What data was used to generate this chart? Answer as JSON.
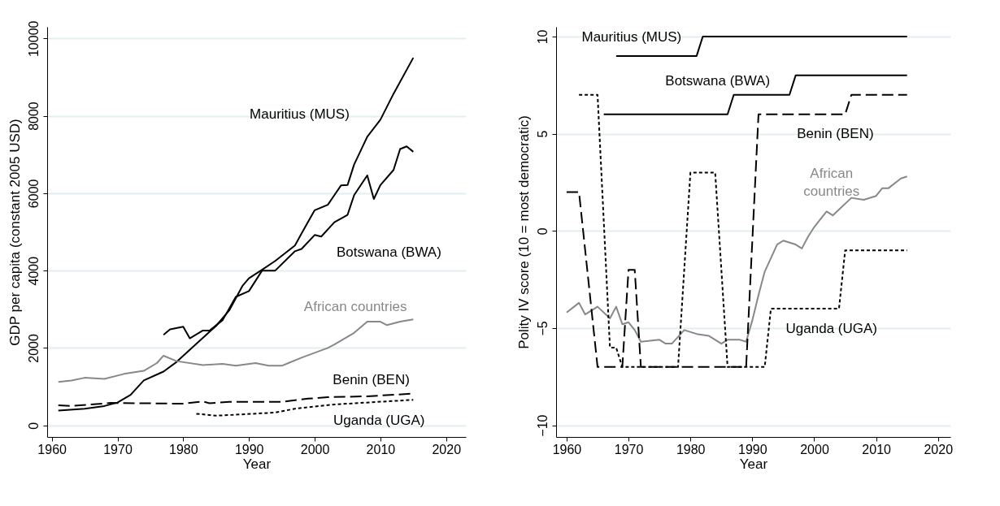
{
  "chart_data": [
    {
      "type": "line",
      "xlabel": "Year",
      "ylabel": "GDP per capita (constant 2005 USD)",
      "xlim": [
        1959.3,
        2023
      ],
      "ylim": [
        -300,
        10300
      ],
      "xticks": [
        1960,
        1970,
        1980,
        1990,
        2000,
        2010,
        2020
      ],
      "yticks": [
        0,
        2000,
        4000,
        6000,
        8000,
        10000
      ],
      "grid": "y",
      "series": [
        {
          "name": "Mauritius (MUS)",
          "color": "#000000",
          "line_style": "solid",
          "x": [
            1961,
            1965,
            1968,
            1970,
            1972,
            1974,
            1977,
            1979,
            1982,
            1985,
            1987,
            1989,
            1990,
            1992,
            1994,
            1997,
            1998,
            2000,
            2002,
            2003,
            2004,
            2005,
            2006,
            2008,
            2010,
            2012,
            2015
          ],
          "values": [
            380,
            430,
            500,
            590,
            790,
            1160,
            1390,
            1640,
            2110,
            2570,
            2970,
            3600,
            3800,
            4020,
            4250,
            4650,
            4960,
            5560,
            5700,
            5950,
            6200,
            6210,
            6740,
            7460,
            7900,
            8570,
            9500
          ]
        },
        {
          "name": "Botswana (BWA)",
          "color": "#000000",
          "line_style": "solid",
          "x": [
            1977,
            1978,
            1980,
            1981,
            1983,
            1984,
            1986,
            1988,
            1990,
            1992,
            1994,
            1997,
            1998,
            2000,
            2001,
            2003,
            2005,
            2006,
            2008,
            2009,
            2010,
            2012,
            2013,
            2014,
            2015
          ],
          "values": [
            2340,
            2480,
            2550,
            2250,
            2450,
            2450,
            2720,
            3320,
            3470,
            4000,
            4000,
            4500,
            4560,
            4920,
            4880,
            5250,
            5440,
            5950,
            6460,
            5850,
            6210,
            6600,
            7140,
            7210,
            7070
          ]
        },
        {
          "name": "African countries",
          "color": "#888888",
          "line_style": "solid",
          "x": [
            1961,
            1963,
            1965,
            1968,
            1971,
            1974,
            1976,
            1977,
            1979,
            1983,
            1986,
            1988,
            1991,
            1993,
            1995,
            1996,
            1998,
            2002,
            2003,
            2006,
            2008,
            2010,
            2011,
            2013,
            2015
          ],
          "values": [
            1120,
            1160,
            1230,
            1200,
            1330,
            1410,
            1610,
            1800,
            1660,
            1560,
            1590,
            1540,
            1610,
            1540,
            1540,
            1610,
            1750,
            2000,
            2090,
            2390,
            2680,
            2680,
            2590,
            2680,
            2740
          ]
        },
        {
          "name": "Benin (BEN)",
          "color": "#000000",
          "line_style": "dashed",
          "x": [
            1961,
            1963,
            1969,
            1980,
            1983,
            1984,
            1987,
            1995,
            1999,
            2002,
            2008,
            2015
          ],
          "values": [
            520,
            500,
            580,
            560,
            620,
            570,
            610,
            610,
            690,
            730,
            750,
            820
          ]
        },
        {
          "name": "Uganda (UGA)",
          "color": "#000000",
          "line_style": "dotted",
          "x": [
            1982,
            1985,
            1994,
            1997,
            2003,
            2007,
            2015
          ],
          "values": [
            300,
            250,
            330,
            430,
            540,
            580,
            660
          ]
        }
      ]
    },
    {
      "type": "line",
      "xlabel": "Year",
      "ylabel": "Polity IV score (10 = most democratic)",
      "xlim": [
        1958.3,
        2022
      ],
      "ylim": [
        -10.6,
        10.5
      ],
      "xticks": [
        1960,
        1970,
        1980,
        1990,
        2000,
        2010,
        2020
      ],
      "yticks": [
        -10,
        -5,
        0,
        5,
        10
      ],
      "grid": "y",
      "series": [
        {
          "name": "Mauritius (MUS)",
          "color": "#000000",
          "line_style": "solid",
          "x": [
            1968,
            1981,
            1982,
            2015
          ],
          "values": [
            9,
            9,
            10,
            10
          ]
        },
        {
          "name": "Botswana (BWA)",
          "color": "#000000",
          "line_style": "solid",
          "x": [
            1966,
            1986,
            1987,
            1996,
            1997,
            2015
          ],
          "values": [
            6,
            6,
            7,
            7,
            8,
            8
          ]
        },
        {
          "name": "African countries",
          "color": "#888888",
          "line_style": "solid",
          "x": [
            1960,
            1962,
            1963,
            1965,
            1967,
            1968,
            1969,
            1970,
            1971,
            1972,
            1975,
            1976,
            1977,
            1979,
            1981,
            1983,
            1985,
            1986,
            1988,
            1989,
            1990,
            1991,
            1992,
            1994,
            1995,
            1997,
            1998,
            1999,
            2000,
            2001,
            2002,
            2003,
            2004,
            2006,
            2008,
            2010,
            2011,
            2012,
            2014,
            2015
          ],
          "values": [
            -4.2,
            -3.7,
            -4.3,
            -3.9,
            -4.5,
            -3.9,
            -4.8,
            -4.7,
            -5.1,
            -5.7,
            -5.6,
            -5.8,
            -5.8,
            -5.1,
            -5.3,
            -5.4,
            -5.8,
            -5.6,
            -5.6,
            -5.7,
            -4.6,
            -3.3,
            -2.1,
            -0.7,
            -0.5,
            -0.7,
            -0.9,
            -0.3,
            0.2,
            0.6,
            1.0,
            0.8,
            1.1,
            1.7,
            1.6,
            1.8,
            2.2,
            2.2,
            2.7,
            2.8
          ]
        },
        {
          "name": "Benin (BEN)",
          "color": "#000000",
          "line_style": "dashed",
          "x": [
            1960,
            1962,
            1965,
            1969,
            1970,
            1971,
            1972,
            1989,
            1991,
            2005,
            2006,
            2015
          ],
          "values": [
            2,
            2,
            -7,
            -7,
            -2,
            -2,
            -7,
            -7,
            6,
            6,
            7,
            7
          ]
        },
        {
          "name": "Uganda (UGA)",
          "color": "#000000",
          "line_style": "dotted",
          "x": [
            1962,
            1965,
            1967,
            1968,
            1969,
            1978,
            1980,
            1984,
            1986,
            1992,
            1993,
            2004,
            2005,
            2015
          ],
          "values": [
            7,
            7,
            -6,
            -6,
            -7,
            -7,
            3,
            3,
            -7,
            -7,
            -4,
            -4,
            -1,
            -1
          ]
        }
      ]
    }
  ]
}
